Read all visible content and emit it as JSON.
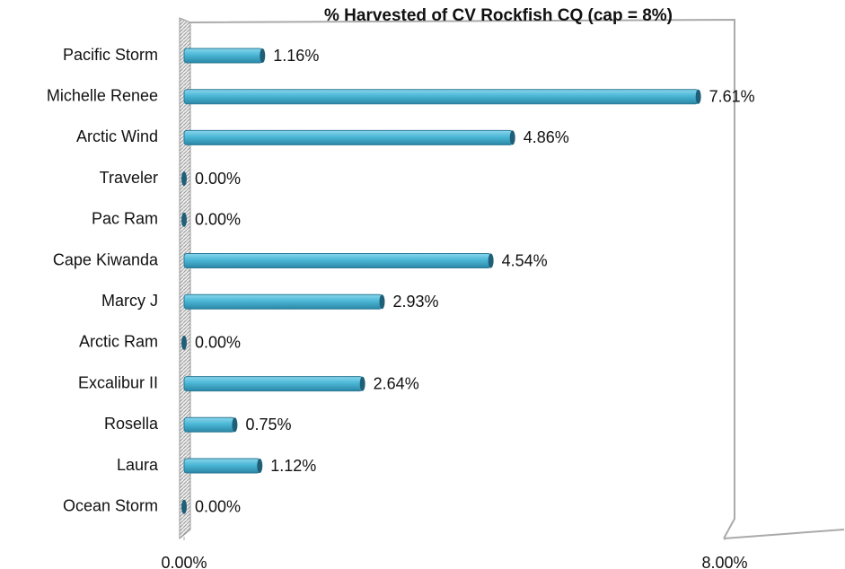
{
  "chart_data": {
    "type": "bar",
    "orientation": "horizontal",
    "title": "% Harvested of CV Rockfish CQ (cap = 8%)",
    "categories": [
      "Pacific Storm",
      "Michelle Renee",
      "Arctic Wind",
      "Traveler",
      "Pac Ram",
      "Cape Kiwanda",
      "Marcy J",
      "Arctic Ram",
      "Excalibur II",
      "Rosella",
      "Laura",
      "Ocean Storm"
    ],
    "values": [
      1.16,
      7.61,
      4.86,
      0,
      0,
      4.54,
      2.93,
      0,
      2.64,
      0.75,
      1.12,
      0
    ],
    "value_labels": [
      "1.16%",
      "7.61%",
      "4.86%",
      "0.00%",
      "0.00%",
      "4.54%",
      "2.93%",
      "0.00%",
      "2.64%",
      "0.75%",
      "1.12%",
      "0.00%"
    ],
    "color": "#4bb7d6",
    "xlim": [
      0,
      8
    ],
    "xticks": [
      {
        "value": 0,
        "label": "0.00%"
      },
      {
        "value": 8,
        "label": "8.00%"
      }
    ],
    "grid": false
  }
}
